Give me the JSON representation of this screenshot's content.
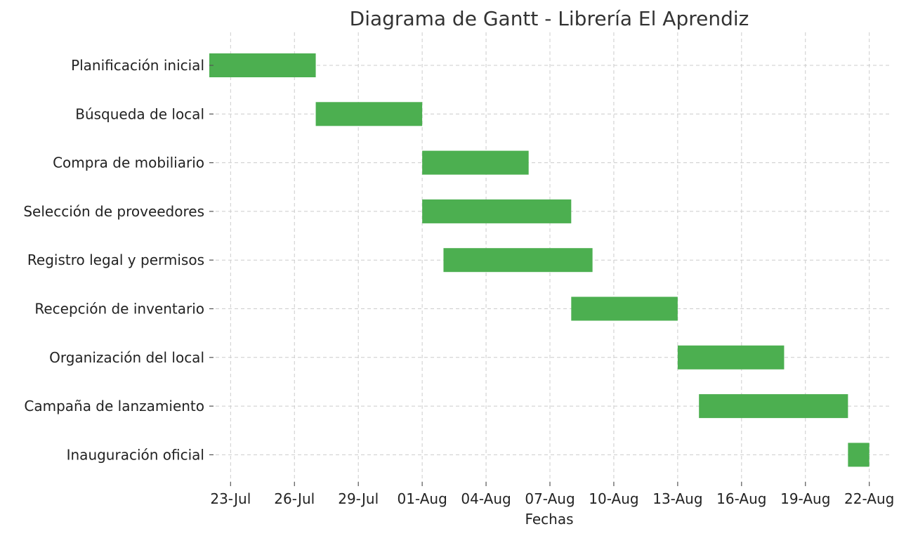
{
  "chart_data": {
    "type": "gantt",
    "title": "Diagrama de Gantt - Librería El Aprendiz",
    "xlabel": "Fechas",
    "ylabel": "",
    "xlim": [
      "2024-07-22",
      "2024-08-23"
    ],
    "x_ticks": [
      "2024-07-23",
      "2024-07-26",
      "2024-07-29",
      "2024-08-01",
      "2024-08-04",
      "2024-08-07",
      "2024-08-10",
      "2024-08-13",
      "2024-08-16",
      "2024-08-19",
      "2024-08-22"
    ],
    "x_tick_labels": [
      "23-Jul",
      "26-Jul",
      "29-Jul",
      "01-Aug",
      "04-Aug",
      "07-Aug",
      "10-Aug",
      "13-Aug",
      "16-Aug",
      "19-Aug",
      "22-Aug"
    ],
    "grid": true,
    "bar_color": "#4CAF50",
    "tasks": [
      {
        "name": "Planificación inicial",
        "start": "2024-07-22",
        "end": "2024-07-27"
      },
      {
        "name": "Búsqueda de local",
        "start": "2024-07-27",
        "end": "2024-08-01"
      },
      {
        "name": "Compra de mobiliario",
        "start": "2024-08-01",
        "end": "2024-08-06"
      },
      {
        "name": "Selección de proveedores",
        "start": "2024-08-01",
        "end": "2024-08-08"
      },
      {
        "name": "Registro legal y permisos",
        "start": "2024-08-02",
        "end": "2024-08-09"
      },
      {
        "name": "Recepción de inventario",
        "start": "2024-08-08",
        "end": "2024-08-13"
      },
      {
        "name": "Organización del local",
        "start": "2024-08-13",
        "end": "2024-08-18"
      },
      {
        "name": "Campaña de lanzamiento",
        "start": "2024-08-14",
        "end": "2024-08-21"
      },
      {
        "name": "Inauguración oficial",
        "start": "2024-08-21",
        "end": "2024-08-22"
      }
    ]
  }
}
